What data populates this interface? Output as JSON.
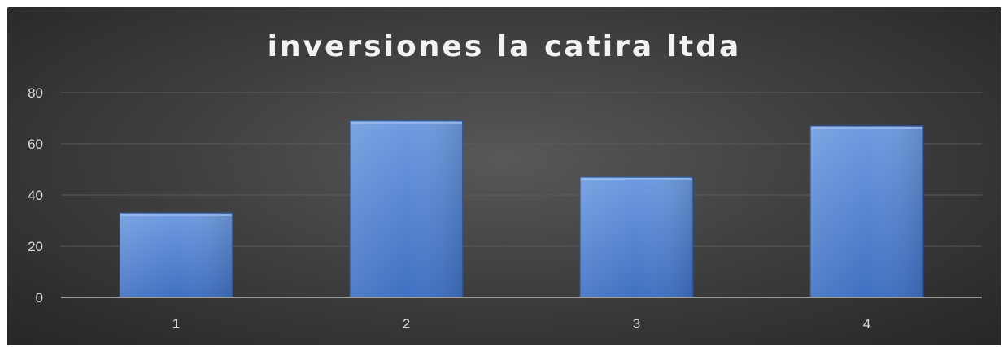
{
  "chart_data": {
    "type": "bar",
    "title": "inversiones la catira ltda",
    "xlabel": "",
    "ylabel": "",
    "categories": [
      "1",
      "2",
      "3",
      "4"
    ],
    "series": [
      {
        "values": [
          33,
          69,
          47,
          67
        ]
      }
    ],
    "ylim": [
      0,
      80
    ],
    "yticks": [
      0,
      20,
      40,
      60,
      80
    ],
    "grid": true,
    "legend": "none",
    "colors": {
      "bar_top": "#6f9be0",
      "bar_bottom": "#3f70c2",
      "bar_edge": "#2f5597",
      "gridline": "#5a5a5a",
      "axis": "#bfbfbf",
      "text": "#d9d9d9",
      "title": "#f2f2f2"
    }
  }
}
